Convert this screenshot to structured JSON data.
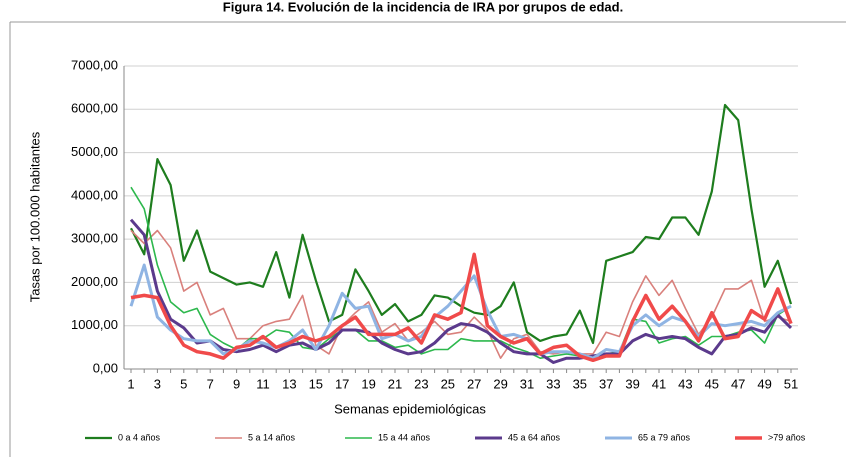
{
  "chart_data": {
    "type": "line",
    "title": "Figura 14. Evolución de la incidencia de IRA por grupos de edad.",
    "x_label": "Semanas epidemiológicas",
    "y_label": "Tasas por 100.000 habitantes",
    "categories": [
      1,
      null,
      3,
      null,
      5,
      null,
      7,
      null,
      9,
      null,
      11,
      null,
      13,
      null,
      15,
      null,
      17,
      null,
      19,
      null,
      21,
      null,
      23,
      null,
      25,
      null,
      27,
      null,
      29,
      null,
      31,
      null,
      33,
      null,
      35,
      null,
      37,
      null,
      39,
      null,
      41,
      null,
      43,
      null,
      45,
      null,
      47,
      null,
      49,
      null,
      51
    ],
    "ylim": [
      0,
      7000
    ],
    "yticks": [
      {
        "value": 0,
        "label": "0,00"
      },
      {
        "value": 1000,
        "label": "1000,00"
      },
      {
        "value": 2000,
        "label": "2000,00"
      },
      {
        "value": 3000,
        "label": "3000,00"
      },
      {
        "value": 4000,
        "label": "4000,00"
      },
      {
        "value": 5000,
        "label": "5000,00"
      },
      {
        "value": 6000,
        "label": "6000,00"
      },
      {
        "value": 7000,
        "label": "7000,00"
      }
    ],
    "grid": true,
    "legend": "bottom",
    "series": [
      {
        "name": "0 a 4 años",
        "color": "#1e7d1e",
        "values": [
          3250,
          2650,
          4850,
          4250,
          2500,
          3200,
          2250,
          2100,
          1950,
          2000,
          1900,
          2700,
          1650,
          3100,
          2050,
          1100,
          1250,
          2300,
          1800,
          1250,
          1500,
          1100,
          1250,
          1700,
          1650,
          1450,
          1300,
          1250,
          1450,
          2000,
          850,
          650,
          750,
          800,
          1350,
          600,
          2500,
          2600,
          2700,
          3050,
          3000,
          3500,
          3500,
          3100,
          4100,
          6100,
          5750,
          3700,
          1900,
          2500,
          1500
        ]
      },
      {
        "name": "5 a 14 años",
        "color": "#d9807c",
        "values": [
          3200,
          2900,
          3200,
          2800,
          1800,
          2000,
          1250,
          1400,
          700,
          700,
          1000,
          1100,
          1150,
          1700,
          550,
          350,
          1000,
          1300,
          1550,
          850,
          1050,
          650,
          850,
          1100,
          800,
          850,
          1200,
          900,
          250,
          700,
          800,
          400,
          350,
          400,
          350,
          350,
          850,
          750,
          1550,
          2150,
          1700,
          2050,
          1400,
          800,
          1200,
          1850,
          1850,
          2050,
          1100,
          1200,
          1100
        ]
      },
      {
        "name": "15 a 44 años",
        "color": "#2db84d",
        "values": [
          4200,
          3700,
          2400,
          1550,
          1300,
          1400,
          800,
          600,
          450,
          700,
          700,
          900,
          850,
          500,
          450,
          700,
          900,
          900,
          650,
          650,
          500,
          550,
          350,
          450,
          450,
          700,
          650,
          650,
          650,
          500,
          400,
          250,
          300,
          350,
          300,
          300,
          350,
          400,
          1150,
          1100,
          600,
          700,
          750,
          550,
          750,
          750,
          850,
          900,
          600,
          1250,
          1450
        ]
      },
      {
        "name": "45 a 64 años",
        "color": "#5b3a8c",
        "values": [
          3450,
          3100,
          1800,
          1150,
          950,
          600,
          650,
          450,
          400,
          450,
          550,
          400,
          550,
          600,
          450,
          600,
          900,
          900,
          850,
          600,
          450,
          350,
          400,
          600,
          900,
          1050,
          1000,
          850,
          600,
          400,
          350,
          350,
          150,
          250,
          250,
          300,
          350,
          350,
          650,
          800,
          700,
          750,
          700,
          500,
          350,
          750,
          800,
          950,
          850,
          1250,
          950
        ]
      },
      {
        "name": "65 a 79 años",
        "color": "#8fb4e3",
        "values": [
          1450,
          2400,
          1200,
          900,
          700,
          650,
          650,
          350,
          450,
          650,
          600,
          500,
          650,
          900,
          450,
          1000,
          1750,
          1400,
          1450,
          700,
          800,
          650,
          750,
          1200,
          1450,
          1800,
          2150,
          1350,
          750,
          800,
          700,
          350,
          400,
          400,
          350,
          250,
          450,
          400,
          1000,
          1250,
          1000,
          1200,
          1100,
          750,
          1050,
          1000,
          1050,
          1100,
          1000,
          1300,
          1450
        ]
      },
      {
        "name": ">79 años",
        "color": "#f04a4a",
        "values": [
          1650,
          1700,
          1650,
          1000,
          550,
          400,
          350,
          250,
          500,
          550,
          750,
          500,
          600,
          750,
          650,
          750,
          1000,
          1200,
          800,
          800,
          800,
          950,
          600,
          1250,
          1150,
          1300,
          2650,
          1000,
          750,
          600,
          700,
          350,
          500,
          550,
          300,
          200,
          300,
          300,
          1100,
          1700,
          1150,
          1450,
          1100,
          650,
          1300,
          700,
          750,
          1350,
          1150,
          1850,
          1050
        ]
      }
    ]
  }
}
